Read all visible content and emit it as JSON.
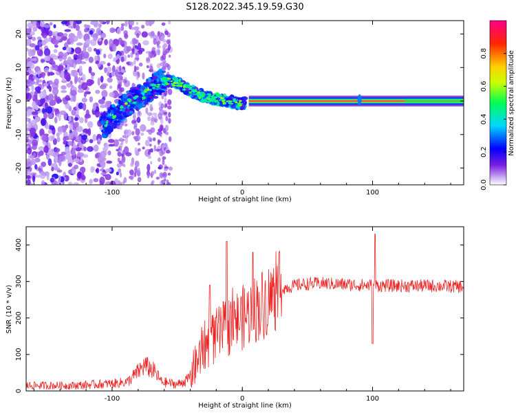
{
  "title": "S128.2022.345.19.59.G30",
  "chart_data": [
    {
      "type": "heatmap",
      "xlabel": "Height of straight line (km)",
      "ylabel": "Frequency (Hz)",
      "xlim": [
        -166,
        170
      ],
      "ylim": [
        -25,
        24
      ],
      "x_ticks": [
        -100,
        0,
        100
      ],
      "y_ticks": [
        -20,
        -10,
        0,
        10,
        20
      ],
      "colorbar": {
        "label": "Normalized spectral amplitude",
        "range": [
          0.0,
          1.0
        ],
        "ticks": [
          0.0,
          0.2,
          0.4,
          0.6,
          0.8
        ],
        "tick_labels": [
          "0.0",
          "0.2",
          "0.4",
          "0.6",
          "0.8"
        ],
        "colormap": [
          "#ffffff",
          "#cdb5f5",
          "#7a1ee0",
          "#0000ff",
          "#00d7ff",
          "#00ff55",
          "#c8ff00",
          "#ffd000",
          "#ff2600",
          "#ff0088"
        ]
      },
      "ridge_frequency_hz": [
        {
          "x": -105,
          "f": -7
        },
        {
          "x": -95,
          "f": -3
        },
        {
          "x": -85,
          "f": 0
        },
        {
          "x": -75,
          "f": 2
        },
        {
          "x": -62,
          "f": 6
        },
        {
          "x": -50,
          "f": 5.5
        },
        {
          "x": -40,
          "f": 3
        },
        {
          "x": -30,
          "f": 1.5
        },
        {
          "x": -20,
          "f": 0.5
        },
        {
          "x": -10,
          "f": 0
        },
        {
          "x": 0,
          "f": -1
        },
        {
          "x": 5,
          "f": 0
        },
        {
          "x": 170,
          "f": 0
        }
      ]
    },
    {
      "type": "line",
      "xlabel": "Height of straight line (km)",
      "ylabel": "SNR (10 * v/v)",
      "xlim": [
        -166,
        170
      ],
      "ylim": [
        0,
        450
      ],
      "x_ticks": [
        -100,
        0,
        100
      ],
      "y_ticks": [
        0,
        100,
        200,
        300,
        400
      ],
      "series_color": "#ee2222",
      "envelope": [
        {
          "x": -166,
          "y": 15
        },
        {
          "x": -130,
          "y": 15
        },
        {
          "x": -100,
          "y": 20
        },
        {
          "x": -88,
          "y": 25
        },
        {
          "x": -75,
          "y": 70
        },
        {
          "x": -68,
          "y": 55
        },
        {
          "x": -62,
          "y": 25
        },
        {
          "x": -50,
          "y": 18
        },
        {
          "x": -42,
          "y": 30
        },
        {
          "x": -36,
          "y": 70
        },
        {
          "x": -30,
          "y": 120
        },
        {
          "x": -20,
          "y": 150
        },
        {
          "x": -10,
          "y": 180
        },
        {
          "x": 0,
          "y": 200
        },
        {
          "x": 10,
          "y": 225
        },
        {
          "x": 20,
          "y": 250
        },
        {
          "x": 30,
          "y": 280
        },
        {
          "x": 45,
          "y": 292
        },
        {
          "x": 60,
          "y": 295
        },
        {
          "x": 90,
          "y": 290
        },
        {
          "x": 120,
          "y": 288
        },
        {
          "x": 150,
          "y": 288
        },
        {
          "x": 170,
          "y": 285
        }
      ],
      "spikes": [
        {
          "x": -12,
          "y": 410
        },
        {
          "x": -25,
          "y": 290
        },
        {
          "x": 8,
          "y": 380
        },
        {
          "x": 100,
          "y": 450
        },
        {
          "x": 102,
          "y": 430
        }
      ],
      "dips": [
        {
          "x": 100,
          "y": 130
        }
      ]
    }
  ]
}
